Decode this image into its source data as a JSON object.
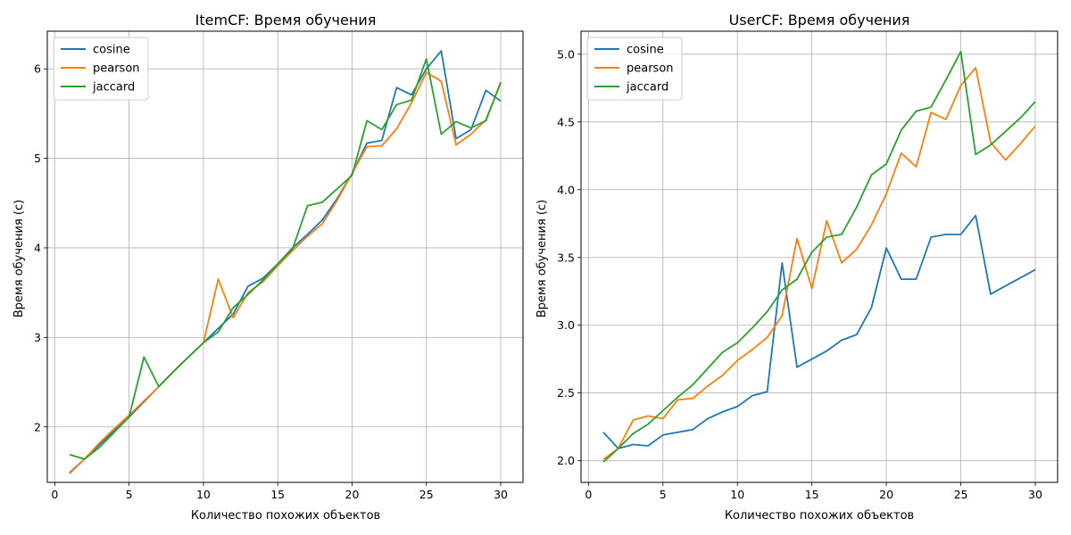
{
  "chart_data": [
    {
      "type": "line",
      "title": "ItemCF: Время обучения",
      "xlabel": "Количество похожих объектов",
      "ylabel": "Время обучения (с)",
      "xlim": [
        -0.5,
        31.5
      ],
      "ylim": [
        1.38,
        6.42
      ],
      "xticks": [
        0,
        5,
        10,
        15,
        20,
        25,
        30
      ],
      "yticks": [
        2,
        3,
        4,
        5,
        6
      ],
      "ytick_labels": [
        "2",
        "3",
        "4",
        "5",
        "6"
      ],
      "grid": true,
      "legend_position": "top-left",
      "x": [
        1,
        2,
        3,
        4,
        5,
        6,
        7,
        8,
        9,
        10,
        11,
        12,
        13,
        14,
        15,
        16,
        17,
        18,
        19,
        20,
        21,
        22,
        23,
        24,
        25,
        26,
        27,
        28,
        29,
        30
      ],
      "series": [
        {
          "name": "cosine",
          "color": "#1f77b4",
          "values": [
            1.49,
            1.64,
            1.8,
            1.96,
            2.11,
            2.28,
            2.45,
            2.62,
            2.78,
            2.94,
            3.1,
            3.26,
            3.57,
            3.66,
            3.82,
            4.0,
            4.15,
            4.31,
            4.55,
            4.83,
            5.17,
            5.2,
            5.79,
            5.71,
            6.0,
            6.2,
            5.22,
            5.32,
            5.76,
            5.64
          ]
        },
        {
          "name": "pearson",
          "color": "#ff7f0e",
          "values": [
            1.48,
            1.64,
            1.82,
            1.98,
            2.13,
            2.29,
            2.45,
            2.62,
            2.78,
            2.94,
            3.65,
            3.22,
            3.5,
            3.62,
            3.8,
            3.97,
            4.13,
            4.27,
            4.53,
            4.83,
            5.13,
            5.14,
            5.33,
            5.62,
            5.96,
            5.86,
            5.15,
            5.27,
            5.43,
            5.84
          ]
        },
        {
          "name": "jaccard",
          "color": "#2ca02c",
          "values": [
            1.69,
            1.64,
            1.77,
            1.94,
            2.11,
            2.78,
            2.45,
            2.62,
            2.78,
            2.94,
            3.06,
            3.33,
            3.48,
            3.64,
            3.82,
            3.99,
            4.47,
            4.51,
            4.66,
            4.81,
            5.42,
            5.32,
            5.6,
            5.65,
            6.11,
            5.27,
            5.41,
            5.34,
            5.42,
            5.85
          ]
        }
      ]
    },
    {
      "type": "line",
      "title": "UserCF: Время обучения",
      "xlabel": "Количество похожих объектов",
      "ylabel": "Время обучения (с)",
      "xlim": [
        -0.5,
        31.5
      ],
      "ylim": [
        1.84,
        5.17
      ],
      "xticks": [
        0,
        5,
        10,
        15,
        20,
        25,
        30
      ],
      "yticks": [
        2.0,
        2.5,
        3.0,
        3.5,
        4.0,
        4.5,
        5.0
      ],
      "ytick_labels": [
        "2.0",
        "2.5",
        "3.0",
        "3.5",
        "4.0",
        "4.5",
        "5.0"
      ],
      "grid": true,
      "legend_position": "top-left",
      "x": [
        1,
        2,
        3,
        4,
        5,
        6,
        7,
        8,
        9,
        10,
        11,
        12,
        13,
        14,
        15,
        16,
        17,
        18,
        19,
        20,
        21,
        22,
        23,
        24,
        25,
        26,
        27,
        28,
        29,
        30
      ],
      "series": [
        {
          "name": "cosine",
          "color": "#1f77b4",
          "values": [
            2.21,
            2.09,
            2.12,
            2.11,
            2.19,
            2.21,
            2.23,
            2.31,
            2.36,
            2.4,
            2.48,
            2.51,
            3.46,
            2.69,
            2.75,
            2.81,
            2.89,
            2.93,
            3.13,
            3.57,
            3.34,
            3.34,
            3.65,
            3.67,
            3.67,
            3.81,
            3.23,
            3.29,
            3.35,
            3.41
          ]
        },
        {
          "name": "pearson",
          "color": "#ff7f0e",
          "values": [
            2.01,
            2.09,
            2.3,
            2.33,
            2.31,
            2.45,
            2.46,
            2.55,
            2.63,
            2.74,
            2.82,
            2.91,
            3.07,
            3.64,
            3.27,
            3.77,
            3.46,
            3.56,
            3.74,
            3.97,
            4.27,
            4.17,
            4.57,
            4.52,
            4.77,
            4.9,
            4.35,
            4.22,
            4.34,
            4.47
          ]
        },
        {
          "name": "jaccard",
          "color": "#2ca02c",
          "values": [
            1.99,
            2.09,
            2.2,
            2.27,
            2.37,
            2.47,
            2.56,
            2.68,
            2.8,
            2.87,
            2.98,
            3.1,
            3.26,
            3.34,
            3.54,
            3.65,
            3.67,
            3.87,
            4.11,
            4.19,
            4.44,
            4.58,
            4.61,
            4.81,
            5.02,
            4.26,
            4.33,
            4.43,
            4.53,
            4.65
          ]
        }
      ]
    }
  ]
}
